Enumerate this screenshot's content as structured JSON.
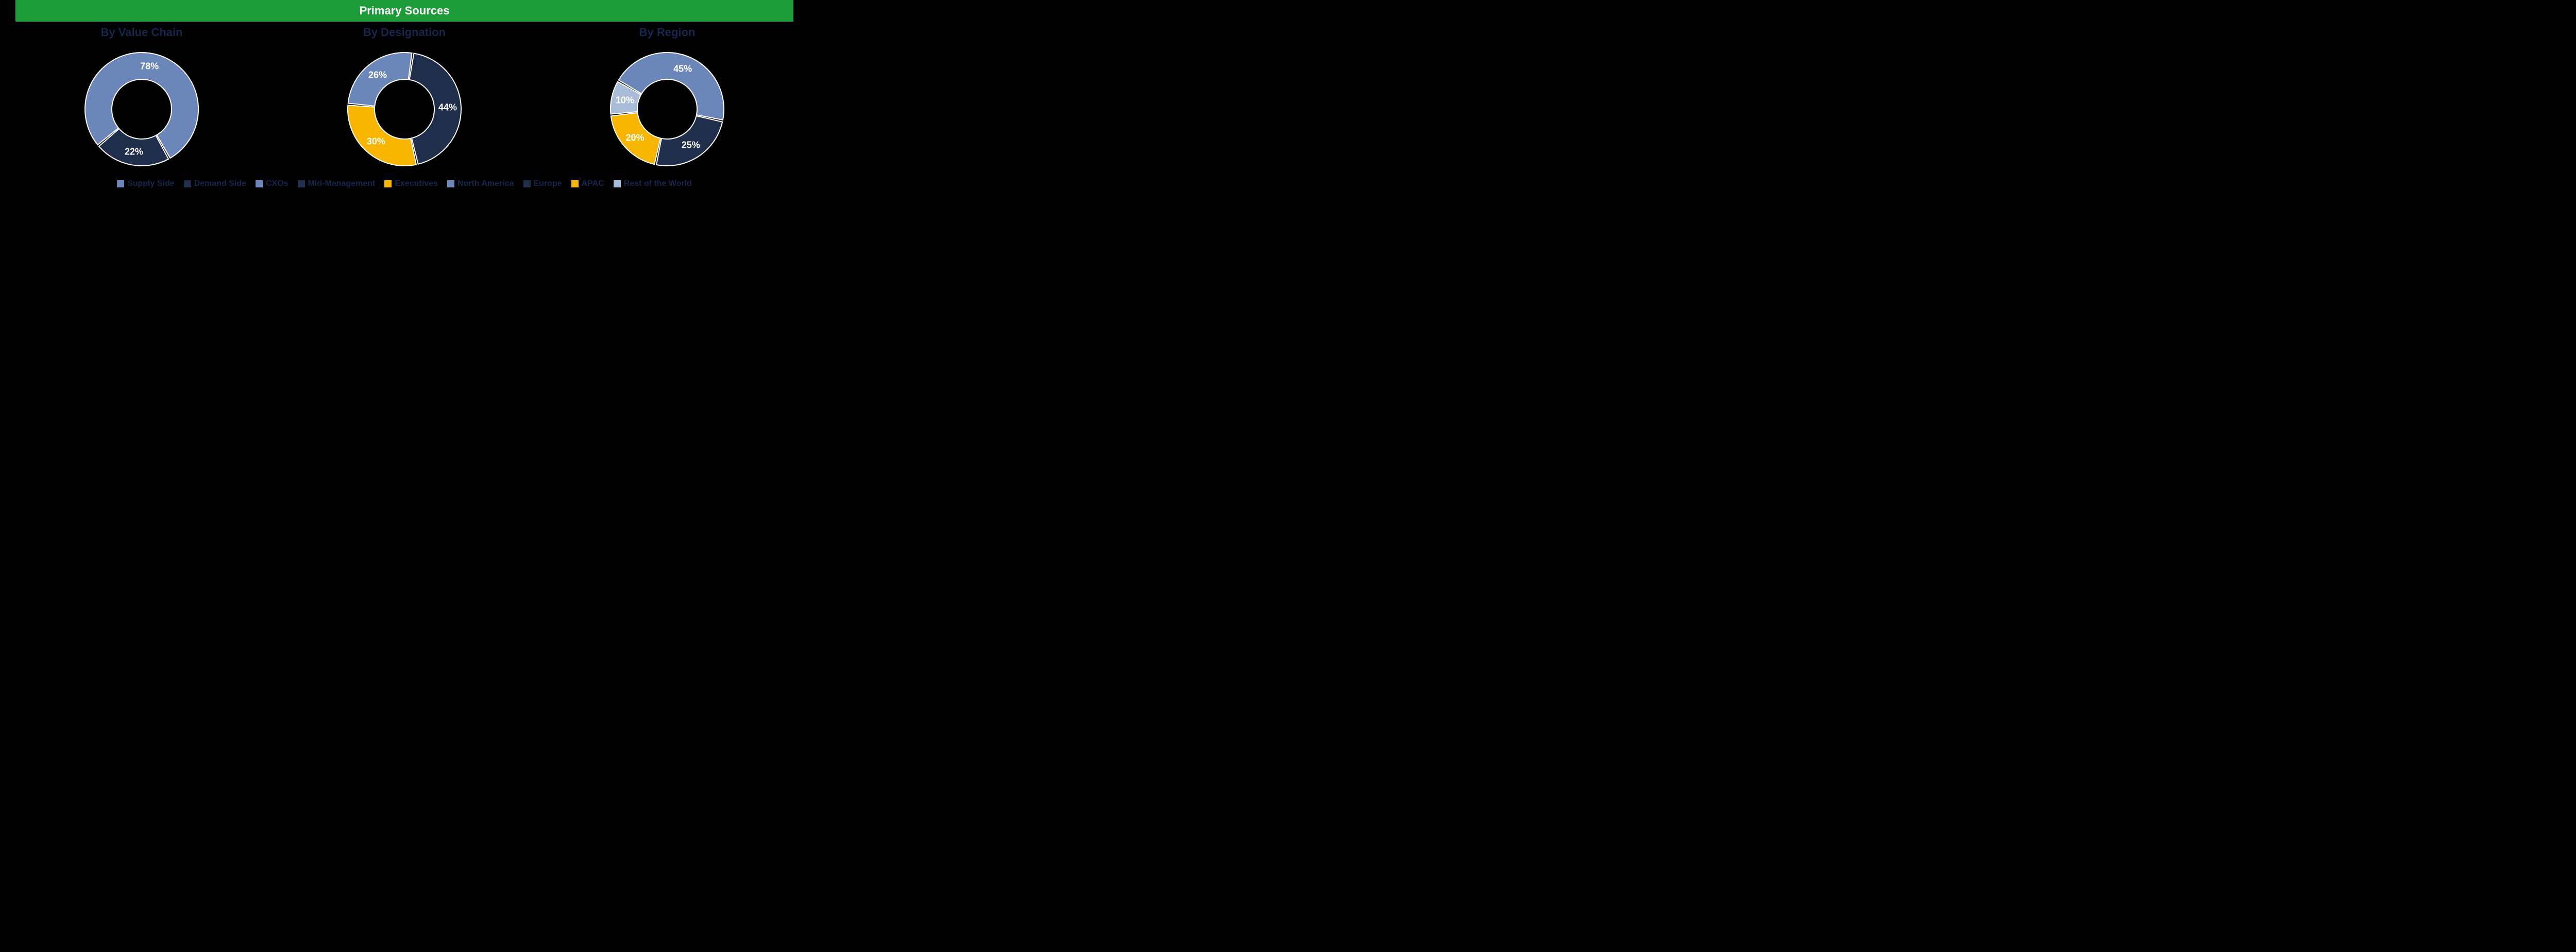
{
  "header": {
    "title": "Primary Sources",
    "bg_color": "#1f9c3a",
    "text_color": "#ffffff"
  },
  "title_color": "#16264c",
  "legend_text_color": "#16264c",
  "background_color": "#000000",
  "donut": {
    "outer_r": 110,
    "inner_r": 58,
    "gap_deg": 2,
    "stroke": "#ffffff",
    "stroke_width": 2
  },
  "charts": [
    {
      "title": "By Value Chain",
      "start_angle": -130,
      "slices": [
        {
          "label": "Supply Side",
          "value": 78,
          "color": "#6b86b8",
          "text": "78%"
        },
        {
          "label": "Demand Side",
          "value": 22,
          "color": "#1f2e4a",
          "text": "22%"
        }
      ]
    },
    {
      "title": "By Designation",
      "start_angle": -85,
      "slices": [
        {
          "label": "CXOs",
          "value": 26,
          "color": "#6b86b8",
          "text": "26%"
        },
        {
          "label": "Mid-Management",
          "value": 44,
          "color": "#1f2e4a",
          "text": "44%"
        },
        {
          "label": "Executives",
          "value": 30,
          "color": "#f7b500",
          "text": "30%"
        }
      ]
    },
    {
      "title": "By Region",
      "start_angle": -60,
      "slices": [
        {
          "label": "North America",
          "value": 45,
          "color": "#6b86b8",
          "text": "45%"
        },
        {
          "label": "Europe",
          "value": 25,
          "color": "#1f2e4a",
          "text": "25%"
        },
        {
          "label": "APAC",
          "value": 20,
          "color": "#f7b500",
          "text": "20%"
        },
        {
          "label": "Rest of the World",
          "value": 10,
          "color": "#a9bdd9",
          "text": "10%"
        }
      ]
    }
  ]
}
